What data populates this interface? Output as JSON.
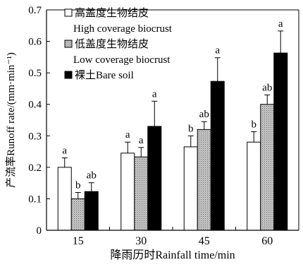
{
  "chart_data": {
    "type": "bar",
    "xlabel": "降雨历时Rainfall time/min",
    "ylabel": "产流率Runoff rate/(mm·min⁻¹)",
    "categories": [
      "15",
      "30",
      "45",
      "60"
    ],
    "ylim": [
      0,
      0.7
    ],
    "yticks": [
      "0",
      "0.1",
      "0.2",
      "0.3",
      "0.4",
      "0.5",
      "0.6",
      "0.7"
    ],
    "grid": false,
    "legend_position": "top-left",
    "series": [
      {
        "name": "高盖度生物结皮 High coverage biocrust",
        "legend_line1": "高盖度生物结皮",
        "legend_line2": "High coverage biocrust",
        "color": "#ffffff",
        "values": [
          0.2,
          0.245,
          0.265,
          0.28
        ],
        "errors": [
          0.03,
          0.035,
          0.035,
          0.033
        ],
        "letters": [
          "a",
          "a",
          "b",
          "b"
        ]
      },
      {
        "name": "低盖度生物结皮 Low coverage biocrust",
        "legend_line1": "低盖度生物结皮",
        "legend_line2": "Low coverage biocrust",
        "color": "#b0b0b0",
        "values": [
          0.1,
          0.233,
          0.32,
          0.4
        ],
        "errors": [
          0.02,
          0.03,
          0.025,
          0.03
        ],
        "letters": [
          "b",
          "a",
          "ab",
          "ab"
        ]
      },
      {
        "name": "裸土Bare soil",
        "legend_line1": "裸土Bare soil",
        "legend_line2": "",
        "color": "#000000",
        "values": [
          0.123,
          0.33,
          0.473,
          0.563
        ],
        "errors": [
          0.028,
          0.08,
          0.075,
          0.07
        ],
        "letters": [
          "ab",
          "a",
          "a",
          "a"
        ]
      }
    ]
  }
}
